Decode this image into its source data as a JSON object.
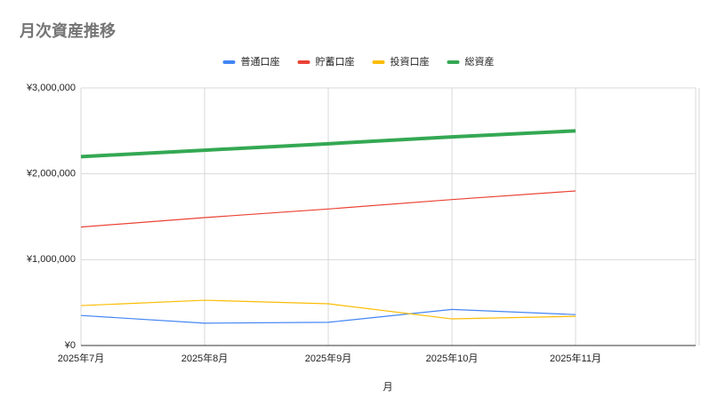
{
  "chart_data": {
    "type": "line",
    "title": "月次資産推移",
    "x_label": "月",
    "categories": [
      "2025年7月",
      "2025年8月",
      "2025年9月",
      "2025年10月",
      "2025年11月",
      null
    ],
    "series": [
      {
        "name": "普通口座",
        "color": "#4285f4",
        "values": [
          350000,
          260000,
          270000,
          420000,
          360000,
          null
        ]
      },
      {
        "name": "貯蓄口座",
        "color": "#ea4335",
        "values": [
          1380000,
          1490000,
          1590000,
          1700000,
          1800000,
          null
        ]
      },
      {
        "name": "投資口座",
        "color": "#fbbc04",
        "values": [
          465000,
          527000,
          486000,
          310000,
          340000,
          null
        ]
      },
      {
        "name": "総資産",
        "color": "#34a853",
        "values": [
          2200000,
          2275000,
          2350000,
          2430000,
          2500000,
          null
        ]
      }
    ],
    "ylim": [
      0,
      3000000
    ],
    "yticks": [
      {
        "value": 0,
        "label": "¥0"
      },
      {
        "value": 1000000,
        "label": "¥1,000,000"
      },
      {
        "value": 2000000,
        "label": "¥2,000,000"
      },
      {
        "value": 3000000,
        "label": "¥3,000,000"
      }
    ],
    "grid": true,
    "legend": "top"
  }
}
